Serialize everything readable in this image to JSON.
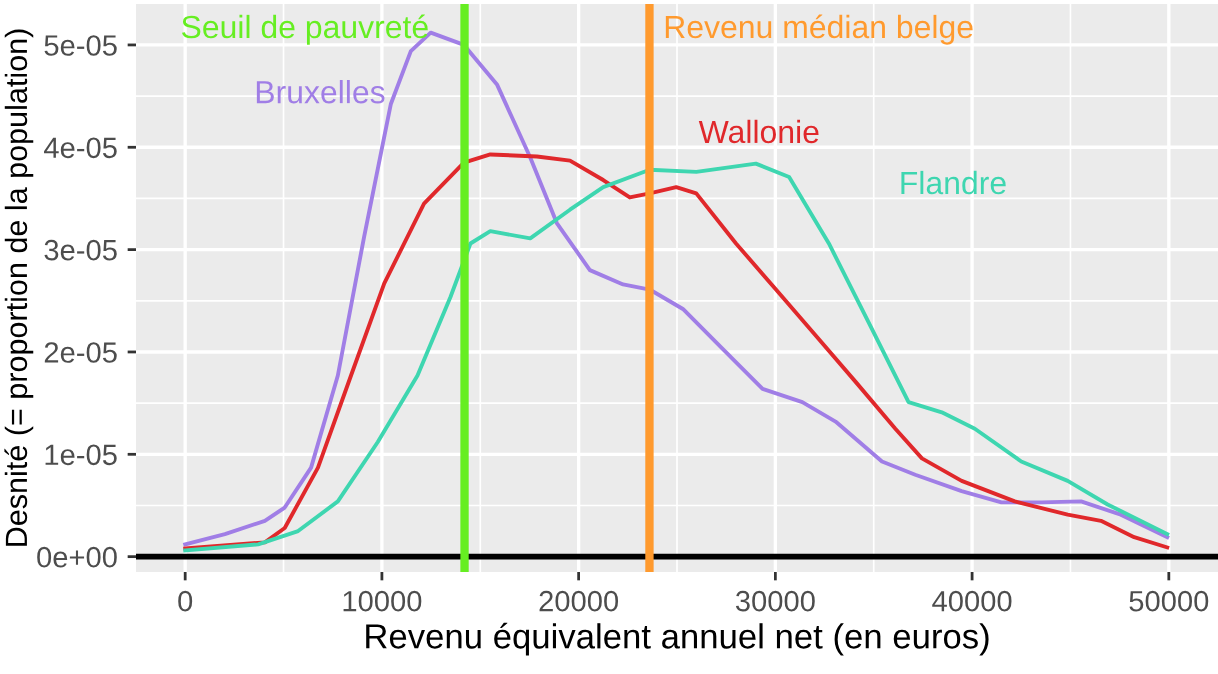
{
  "chart_data": {
    "type": "line",
    "xlabel": "Revenu équivalent annuel net (en euros)",
    "ylabel": "Desnité (= proportion de la population)",
    "xlim": [
      -2500,
      52500
    ],
    "xticks": [
      0,
      10000,
      20000,
      30000,
      40000,
      50000
    ],
    "ylim": [
      -1.5e-06,
      5.4e-05
    ],
    "yticks": [
      {
        "value": 0,
        "label": "0e+00"
      },
      {
        "value": 1e-05,
        "label": "1e-05"
      },
      {
        "value": 2e-05,
        "label": "2e-05"
      },
      {
        "value": 3e-05,
        "label": "3e-05"
      },
      {
        "value": 4e-05,
        "label": "4e-05"
      },
      {
        "value": 5e-05,
        "label": "5e-05"
      }
    ],
    "grid": true,
    "legend": false,
    "series": [
      {
        "name": "Bruxelles",
        "color": "#a07ee6",
        "x": [
          0,
          2020,
          4050,
          5060,
          6400,
          7760,
          9100,
          10450,
          11470,
          12480,
          14170,
          15860,
          17540,
          18890,
          20570,
          22260,
          23610,
          25300,
          27320,
          29350,
          31370,
          33060,
          35420,
          37110,
          39470,
          41490,
          43520,
          45540,
          47560,
          49920
        ],
        "values": [
          1.2e-06,
          2.2e-06,
          3.5e-06,
          4.8e-06,
          8.7e-06,
          1.77e-05,
          3.13e-05,
          4.42e-05,
          4.94e-05,
          5.12e-05,
          5e-05,
          4.61e-05,
          3.9e-05,
          3.26e-05,
          2.8e-05,
          2.66e-05,
          2.61e-05,
          2.42e-05,
          2.03e-05,
          1.64e-05,
          1.51e-05,
          1.32e-05,
          9.3e-06,
          8e-06,
          6.4e-06,
          5.3e-06,
          5.3e-06,
          5.4e-06,
          4.1e-06,
          1.9e-06
        ]
      },
      {
        "name": "Wallonie",
        "color": "#e0282b",
        "x": [
          0,
          4050,
          5060,
          6750,
          8430,
          10120,
          12140,
          14170,
          15510,
          17880,
          19560,
          21250,
          22600,
          23610,
          24960,
          25980,
          28000,
          30030,
          32050,
          34070,
          36100,
          37450,
          39470,
          42170,
          44860,
          46550,
          48240,
          49920
        ],
        "values": [
          8e-07,
          1.4e-06,
          2.8e-06,
          8.7e-06,
          1.77e-05,
          2.67e-05,
          3.45e-05,
          3.85e-05,
          3.93e-05,
          3.91e-05,
          3.87e-05,
          3.68e-05,
          3.51e-05,
          3.55e-05,
          3.61e-05,
          3.55e-05,
          3.06e-05,
          2.61e-05,
          2.16e-05,
          1.71e-05,
          1.25e-05,
          9.6e-06,
          7.4e-06,
          5.4e-06,
          4.1e-06,
          3.5e-06,
          1.9e-06,
          9e-07
        ]
      },
      {
        "name": "Flandre",
        "color": "#3ed6b0",
        "x": [
          0,
          3710,
          5740,
          7760,
          9790,
          11810,
          13490,
          14500,
          15510,
          17540,
          19560,
          21250,
          23610,
          25980,
          29010,
          30700,
          32720,
          34740,
          36770,
          38460,
          40140,
          42500,
          44860,
          46890,
          49920
        ],
        "values": [
          6e-07,
          1.2e-06,
          2.5e-06,
          5.4e-06,
          1.12e-05,
          1.77e-05,
          2.54e-05,
          3.06e-05,
          3.18e-05,
          3.11e-05,
          3.39e-05,
          3.61e-05,
          3.78e-05,
          3.76e-05,
          3.84e-05,
          3.71e-05,
          3.06e-05,
          2.29e-05,
          1.51e-05,
          1.41e-05,
          1.25e-05,
          9.3e-06,
          7.4e-06,
          5.1e-06,
          2.2e-06
        ]
      }
    ],
    "ref_lines": [
      {
        "axis": "y",
        "value": 0,
        "color": "#000000"
      },
      {
        "axis": "x",
        "value": 14200,
        "label": "Seuil de pauvreté",
        "color": "#66ee22"
      },
      {
        "axis": "x",
        "value": 23600,
        "label": "Revenu médian belge",
        "color": "#ff9a2e"
      }
    ]
  }
}
